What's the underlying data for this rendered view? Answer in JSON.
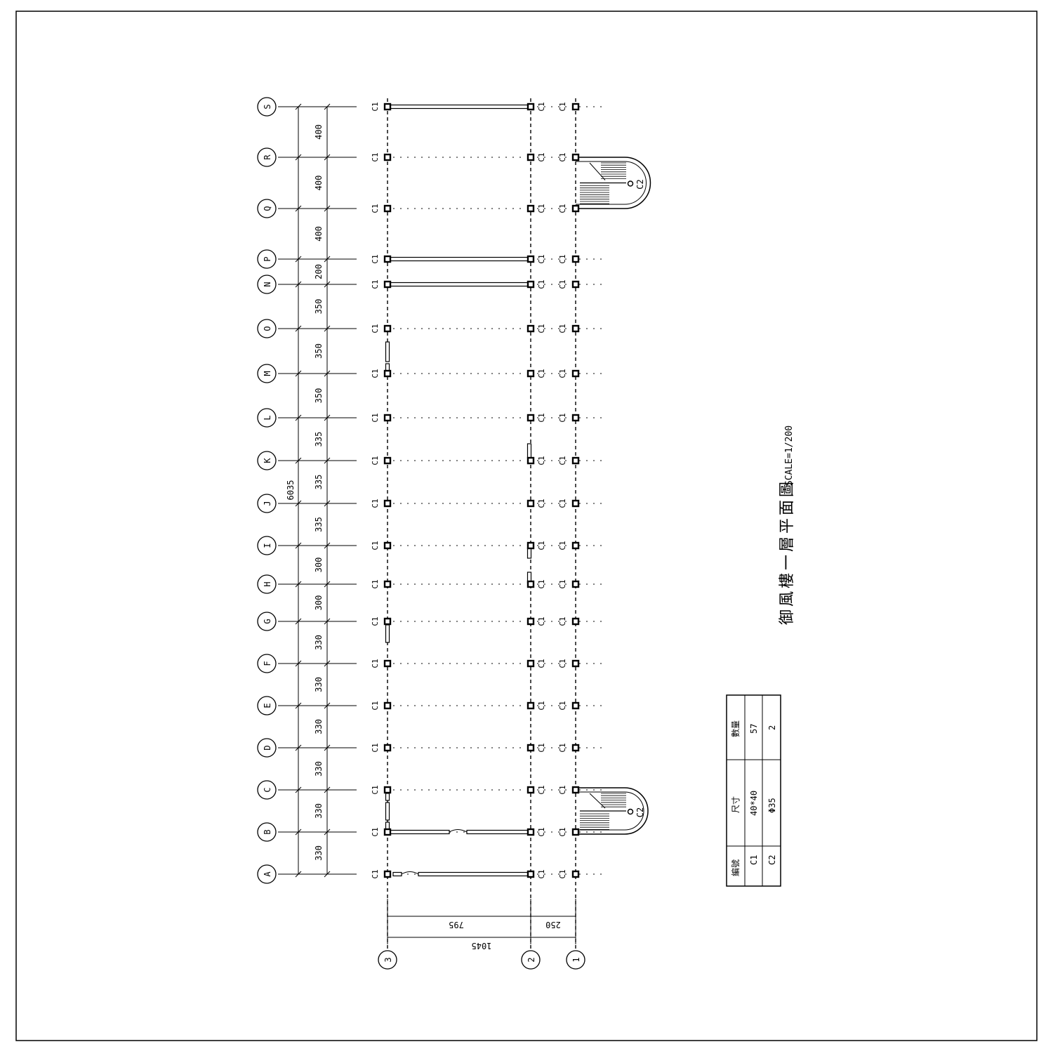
{
  "drawing": {
    "title": "御風樓一層平面圖",
    "scale": "SCALE=1/200",
    "column_label": "C1",
    "stair_column_label": "C2"
  },
  "grid_rows": [
    {
      "label": "A",
      "dim": "330"
    },
    {
      "label": "B",
      "dim": "330"
    },
    {
      "label": "C",
      "dim": "330"
    },
    {
      "label": "D",
      "dim": "330"
    },
    {
      "label": "E",
      "dim": "330"
    },
    {
      "label": "F",
      "dim": "330"
    },
    {
      "label": "G",
      "dim": "300"
    },
    {
      "label": "H",
      "dim": "300"
    },
    {
      "label": "I",
      "dim": "335"
    },
    {
      "label": "J",
      "dim": "335"
    },
    {
      "label": "K",
      "dim": "335"
    },
    {
      "label": "L",
      "dim": "350"
    },
    {
      "label": "M",
      "dim": "350"
    },
    {
      "label": "O",
      "dim": "350"
    },
    {
      "label": "N",
      "dim": "200"
    },
    {
      "label": "P",
      "dim": "400"
    },
    {
      "label": "Q",
      "dim": "400"
    },
    {
      "label": "R",
      "dim": "400"
    },
    {
      "label": "S",
      "dim": ""
    }
  ],
  "total_dim": "6035",
  "grid_cols": [
    {
      "label": "3"
    },
    {
      "label": "2"
    },
    {
      "label": "1"
    }
  ],
  "col_dims": {
    "span_32": "795",
    "span_21": "250",
    "total": "1045"
  },
  "legend": {
    "headers": [
      "編號",
      "尺寸",
      "數量"
    ],
    "rows": [
      [
        "C1",
        "40*40",
        "57"
      ],
      [
        "C2",
        "Φ35",
        "2"
      ]
    ]
  }
}
